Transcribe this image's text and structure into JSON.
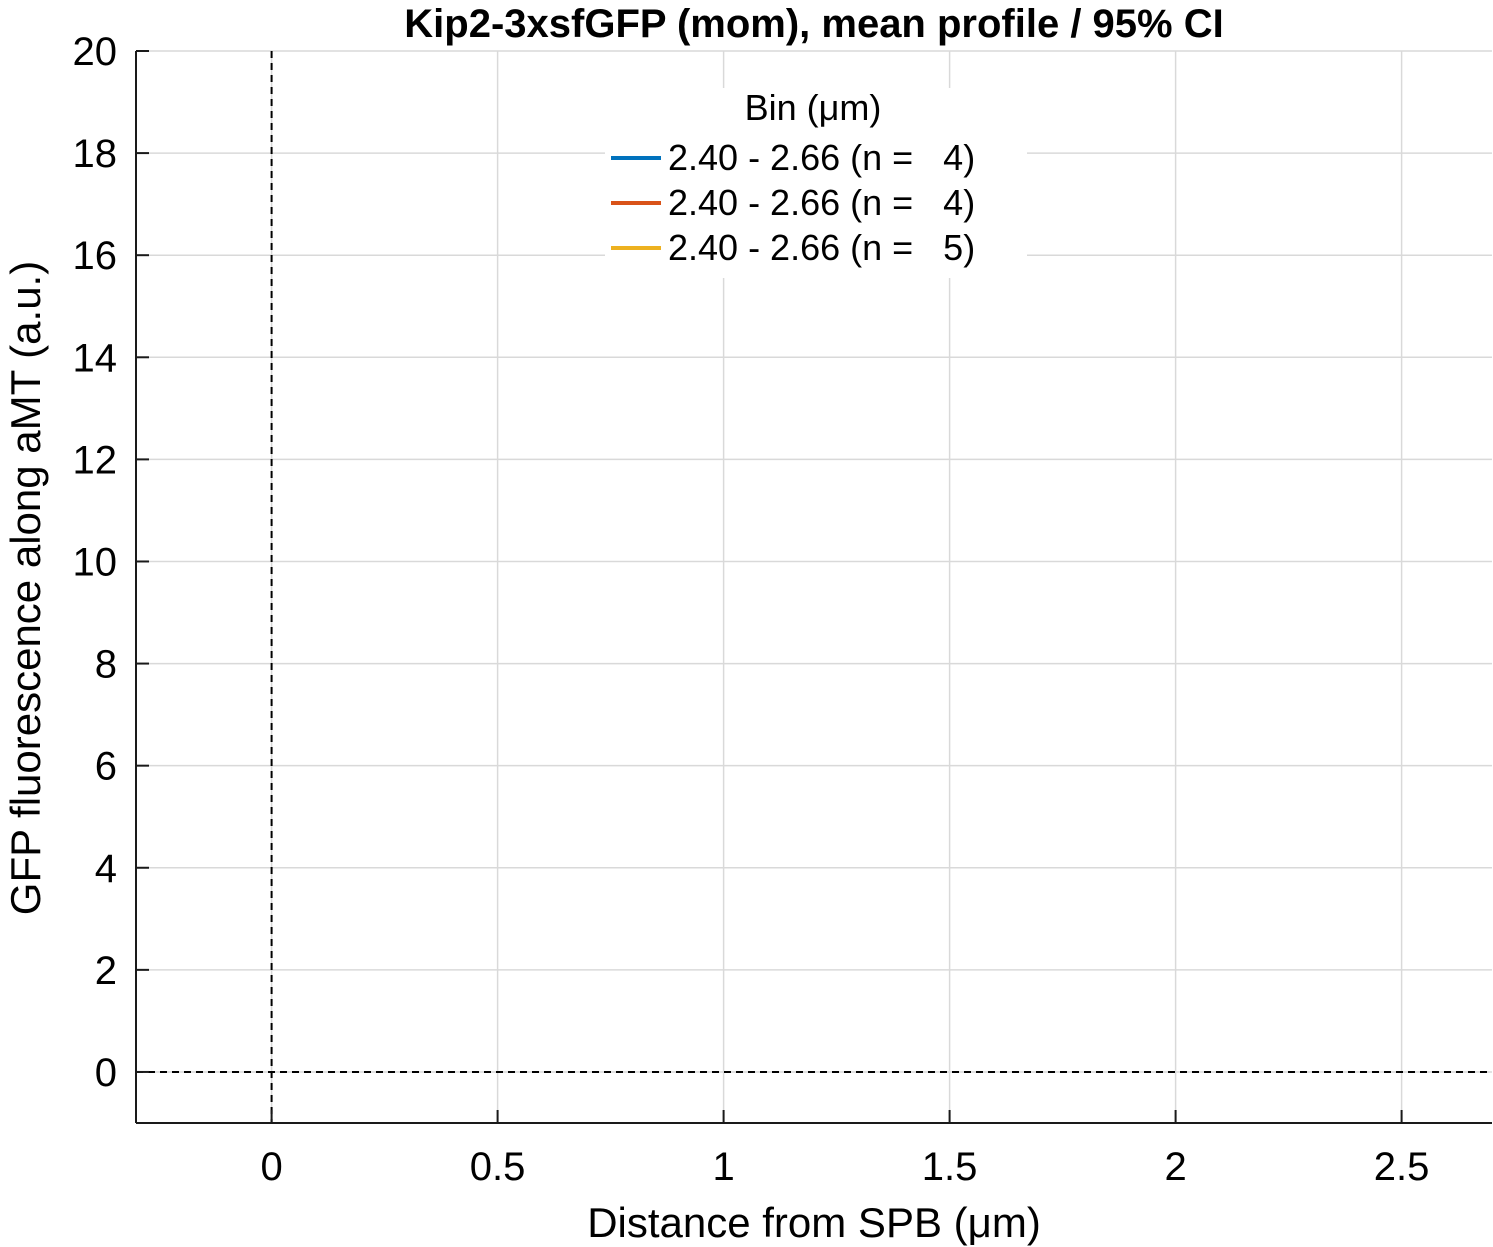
{
  "chart_data": {
    "type": "line",
    "title": "Kip2-3xsfGFP (mom), mean profile / 95% CI",
    "xlabel": "Distance from SPB (μm)",
    "ylabel": "GFP fluorescence along aMT (a.u.)",
    "xlim": [
      -0.3,
      2.7
    ],
    "ylim": [
      -1,
      20
    ],
    "xticks": [
      0,
      0.5,
      1,
      1.5,
      2,
      2.5
    ],
    "xtick_labels": [
      "0",
      "0.5",
      "1",
      "1.5",
      "2",
      "2.5"
    ],
    "yticks": [
      0,
      2,
      4,
      6,
      8,
      10,
      12,
      14,
      16,
      18,
      20
    ],
    "ytick_labels": [
      "0",
      "2",
      "4",
      "6",
      "8",
      "10",
      "12",
      "14",
      "16",
      "18",
      "20"
    ],
    "grid": true,
    "reference_lines": [
      {
        "orientation": "vertical",
        "value": 0,
        "style": "dashed"
      },
      {
        "orientation": "horizontal",
        "value": 0,
        "style": "dashed"
      }
    ],
    "legend": {
      "title": "Bin (μm)",
      "placement": "top-center"
    },
    "series": [
      {
        "name": "2.40 - 2.66 (n =   4)",
        "color": "#0072BD",
        "values": []
      },
      {
        "name": "2.40 - 2.66 (n =   4)",
        "color": "#D95319",
        "values": []
      },
      {
        "name": "2.40 - 2.66 (n =   5)",
        "color": "#EDB120",
        "values": []
      }
    ]
  }
}
